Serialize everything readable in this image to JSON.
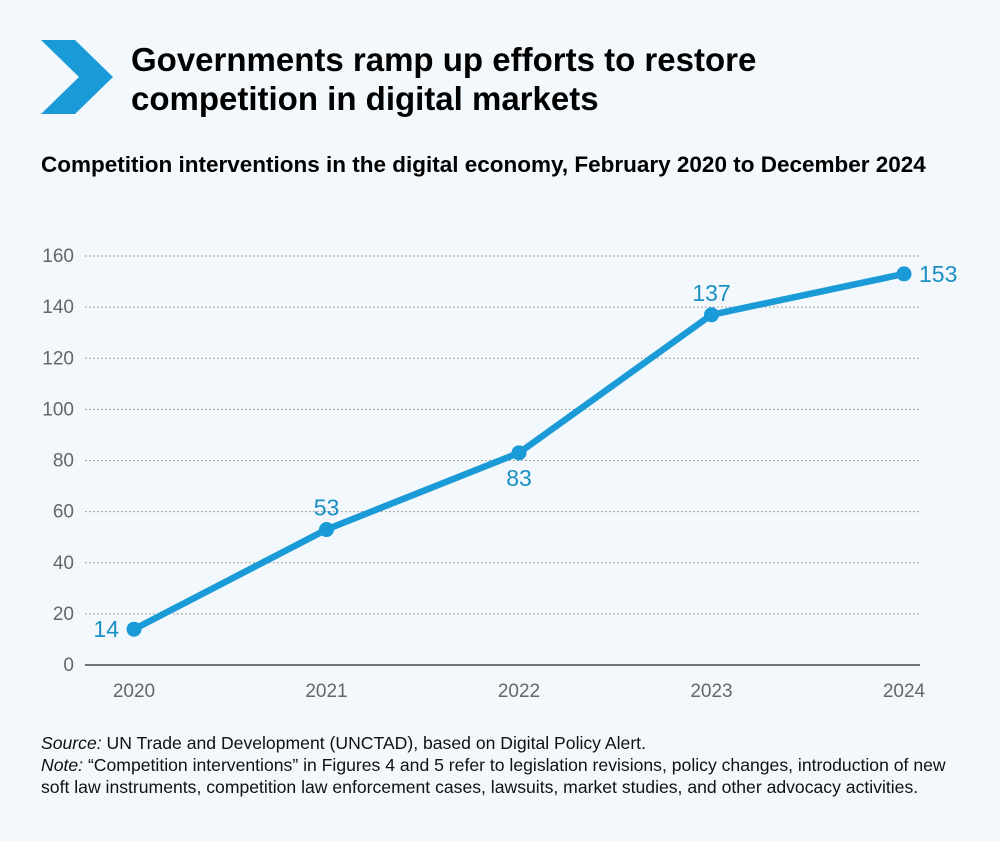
{
  "header": {
    "title": "Governments ramp up efforts to restore competition in digital markets",
    "subtitle": "Competition interventions in the digital economy, February 2020 to December 2024"
  },
  "icons": {
    "header_icon": "chevron-right-icon"
  },
  "colors": {
    "accent": "#1a9bd7",
    "label": "#1a8fc2",
    "axis_text": "#666666",
    "grid": "#888888"
  },
  "chart_data": {
    "type": "line",
    "title": "Competition interventions in the digital economy, February 2020 to December 2024",
    "xlabel": "",
    "ylabel": "",
    "categories": [
      "2020",
      "2021",
      "2022",
      "2023",
      "2024"
    ],
    "values": [
      14,
      53,
      83,
      137,
      153
    ],
    "data_labels": [
      "14",
      "53",
      "83",
      "137",
      "153"
    ],
    "label_positions": [
      "left",
      "above",
      "below",
      "above",
      "right"
    ],
    "ylim": [
      0,
      160
    ],
    "yticks": [
      0,
      20,
      40,
      60,
      80,
      100,
      120,
      140,
      160
    ],
    "ytick_labels": [
      "0",
      "20",
      "40",
      "60",
      "80",
      "100",
      "120",
      "140",
      "160"
    ],
    "grid": true,
    "legend": "none"
  },
  "footer": {
    "source_label": "Source:",
    "source_text": " UN Trade and Development (UNCTAD), based on Digital Policy Alert.",
    "note_label": "Note:",
    "note_text": " “Competition interventions” in Figures 4 and 5 refer to legislation revisions, policy changes, introduction of new soft law instruments, competition law enforcement cases, lawsuits, market studies, and other advocacy activities."
  }
}
